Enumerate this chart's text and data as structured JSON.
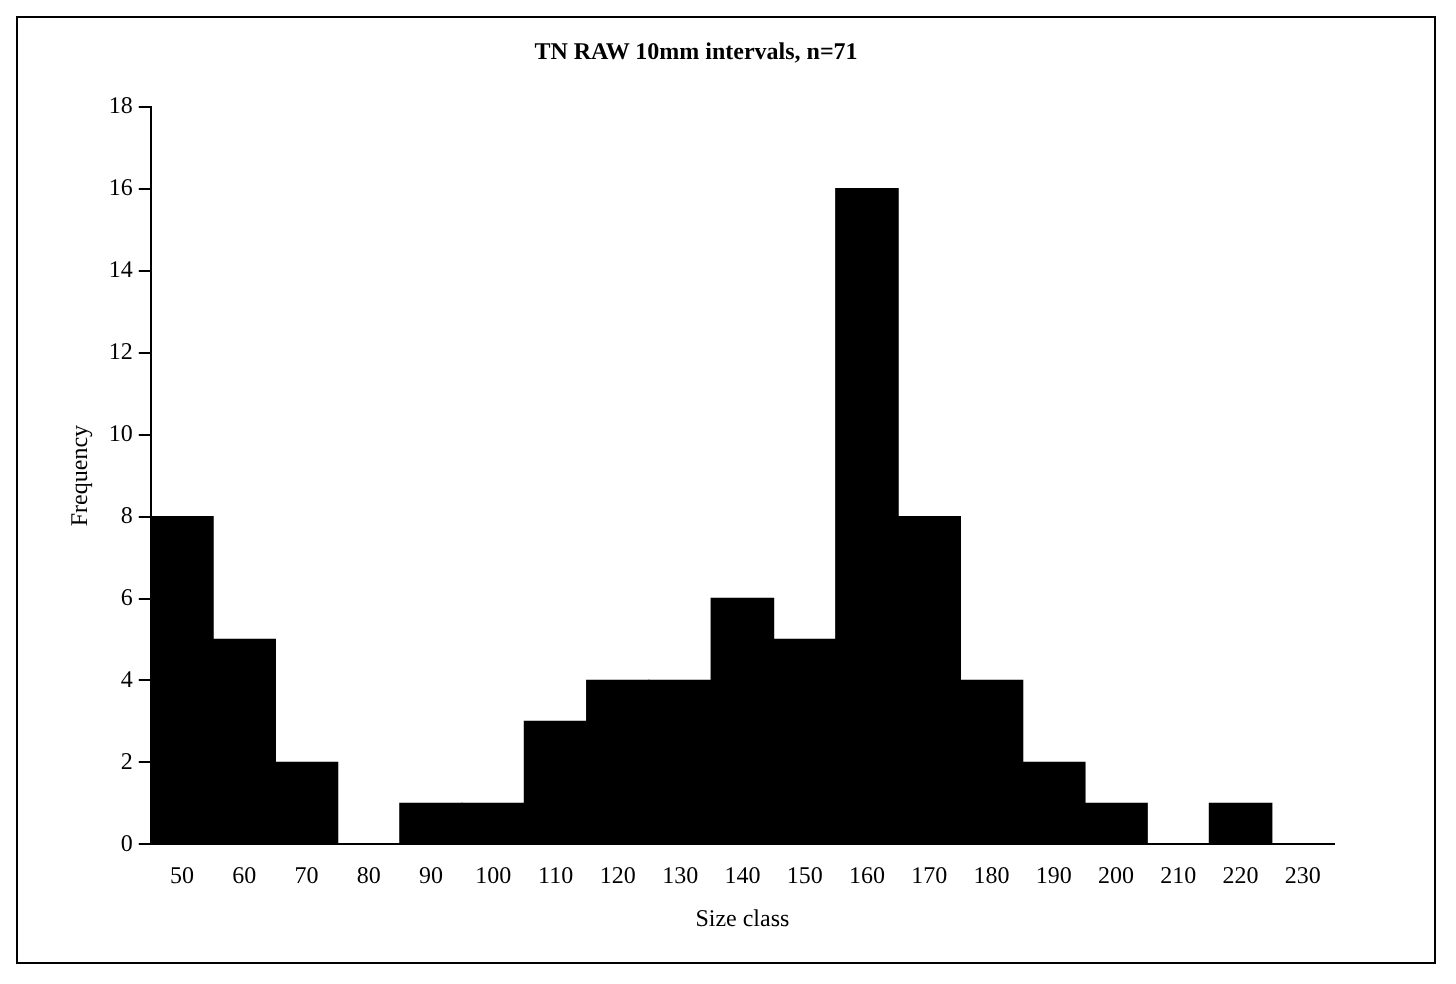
{
  "chart_data": {
    "type": "bar",
    "title": "TN RAW 10mm intervals, n=71",
    "xlabel": "Size class",
    "ylabel": "Frequency",
    "categories": [
      "50",
      "60",
      "70",
      "80",
      "90",
      "100",
      "110",
      "120",
      "130",
      "140",
      "150",
      "160",
      "170",
      "180",
      "190",
      "200",
      "210",
      "220",
      "230"
    ],
    "values": [
      8,
      5,
      2,
      0,
      1,
      1,
      3,
      4,
      4,
      6,
      5,
      16,
      8,
      4,
      2,
      1,
      0,
      1,
      0
    ],
    "color": "#000000",
    "ylim": [
      0,
      18
    ],
    "yticks": [
      0,
      2,
      4,
      6,
      8,
      10,
      12,
      14,
      16,
      18
    ],
    "grid": false,
    "legend": false
  }
}
